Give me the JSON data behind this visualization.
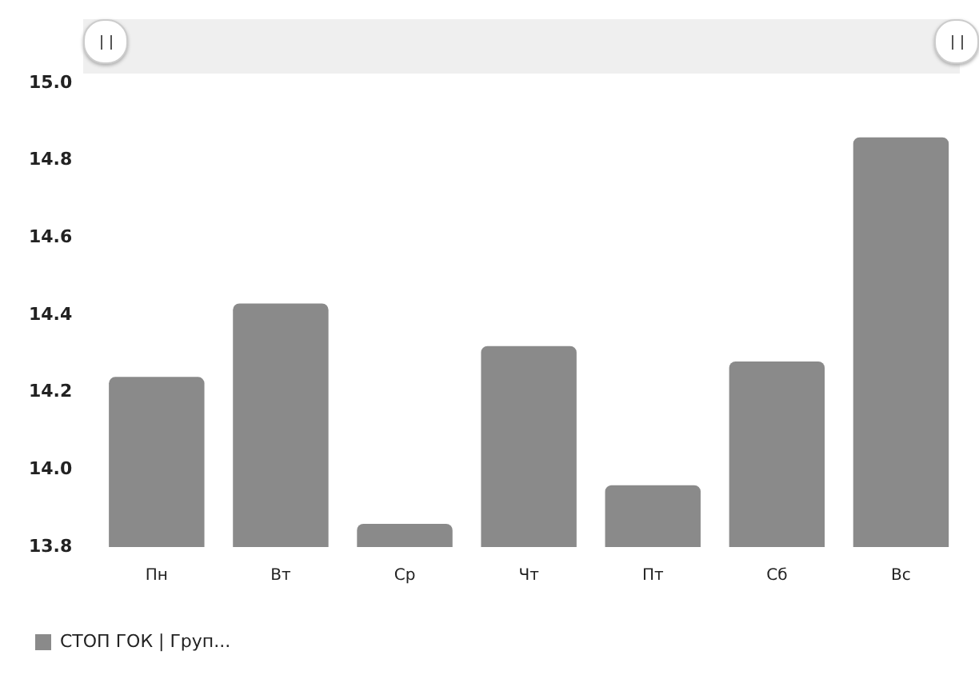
{
  "chart_data": {
    "type": "bar",
    "categories": [
      "Пн",
      "Вт",
      "Ср",
      "Чт",
      "Пт",
      "Сб",
      "Вс"
    ],
    "series": [
      {
        "name": "СТОП ГОК | Груп...",
        "color": "#8a8a8a",
        "values": [
          14.24,
          14.43,
          13.86,
          14.32,
          13.96,
          14.28,
          14.86
        ]
      }
    ],
    "ylim": [
      13.8,
      15.0
    ],
    "yticks": [
      {
        "value": 13.8,
        "label": "13.8"
      },
      {
        "value": 14.0,
        "label": "14.0"
      },
      {
        "value": 14.2,
        "label": "14.2"
      },
      {
        "value": 14.4,
        "label": "14.4"
      },
      {
        "value": 14.6,
        "label": "14.6"
      },
      {
        "value": 14.8,
        "label": "14.8"
      },
      {
        "value": 15.0,
        "label": "15.0"
      }
    ],
    "grid": false,
    "legend": "bottom left"
  }
}
